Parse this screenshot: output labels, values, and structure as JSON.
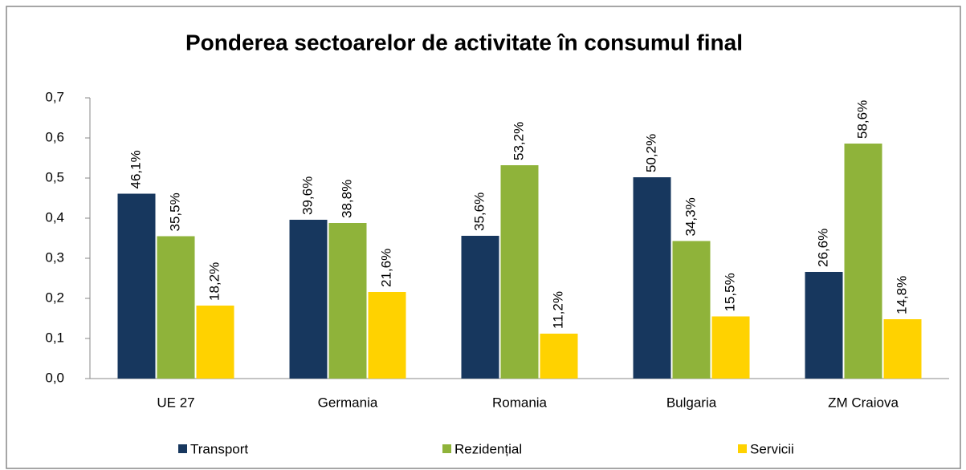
{
  "chart_data": {
    "type": "bar",
    "title": "Ponderea sectoarelor de activitate în consumul final",
    "categories": [
      "UE 27",
      "Germania",
      "Romania",
      "Bulgaria",
      "ZM Craiova"
    ],
    "series": [
      {
        "name": "Transport",
        "color": "#17375e",
        "values": [
          0.461,
          0.396,
          0.356,
          0.502,
          0.266
        ],
        "value_labels": [
          "46,1%",
          "39,6%",
          "35,6%",
          "50,2%",
          "26,6%"
        ]
      },
      {
        "name": "Rezidențial",
        "color": "#8fb33a",
        "values": [
          0.355,
          0.388,
          0.532,
          0.343,
          0.586
        ],
        "value_labels": [
          "35,5%",
          "38,8%",
          "53,2%",
          "34,3%",
          "58,6%"
        ]
      },
      {
        "name": "Servicii",
        "color": "#ffd200",
        "values": [
          0.182,
          0.216,
          0.112,
          0.155,
          0.148
        ],
        "value_labels": [
          "18,2%",
          "21,6%",
          "11,2%",
          "15,5%",
          "14,8%"
        ]
      }
    ],
    "ylim": [
      0,
      0.7
    ],
    "yticks": [
      {
        "value": 0,
        "label": "0,0"
      },
      {
        "value": 0.1,
        "label": "0,1"
      },
      {
        "value": 0.2,
        "label": "0,2"
      },
      {
        "value": 0.3,
        "label": "0,3"
      },
      {
        "value": 0.4,
        "label": "0,4"
      },
      {
        "value": 0.5,
        "label": "0,5"
      },
      {
        "value": 0.6,
        "label": "0,6"
      },
      {
        "value": 0.7,
        "label": "0,7"
      }
    ],
    "grid": false,
    "legend": "bottom"
  }
}
